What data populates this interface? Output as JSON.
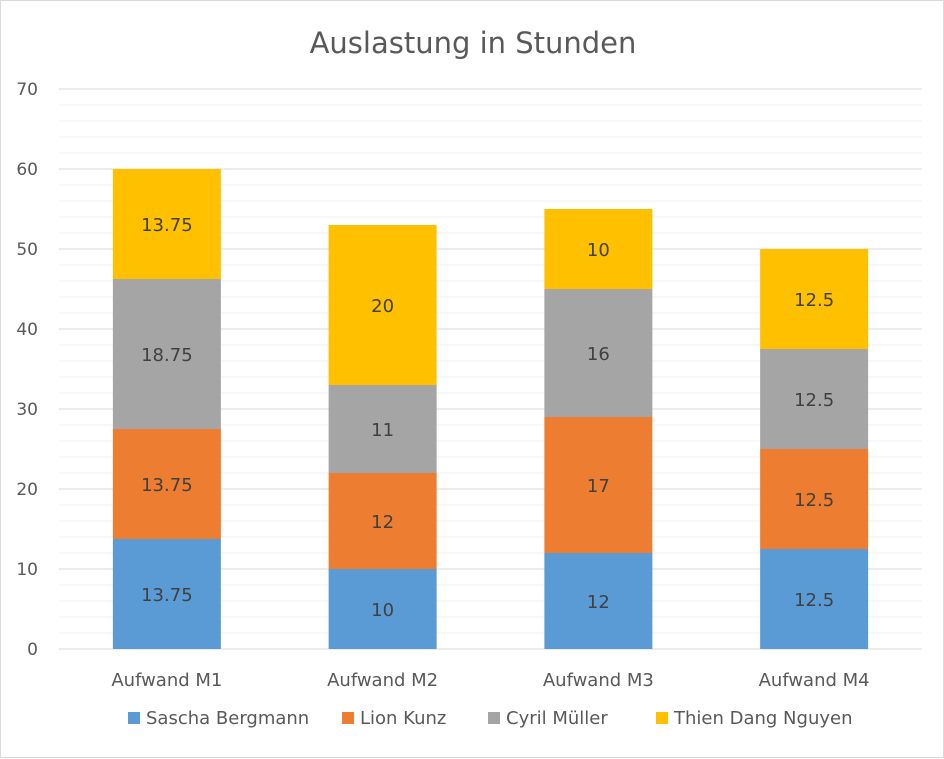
{
  "chart_data": {
    "type": "bar",
    "stacked": true,
    "title": "Auslastung in Stunden",
    "categories": [
      "Aufwand M1",
      "Aufwand M2",
      "Aufwand M3",
      "Aufwand M4"
    ],
    "series": [
      {
        "name": "Sascha Bergmann",
        "color": "#5b9bd5",
        "values": [
          13.75,
          10,
          12,
          12.5
        ]
      },
      {
        "name": "Lion Kunz",
        "color": "#ed7d31",
        "values": [
          13.75,
          12,
          17,
          12.5
        ]
      },
      {
        "name": "Cyril Müller",
        "color": "#a5a5a5",
        "values": [
          18.75,
          11,
          16,
          12.5
        ]
      },
      {
        "name": "Thien Dang Nguyen",
        "color": "#ffc000",
        "values": [
          13.75,
          20,
          10,
          12.5
        ]
      }
    ],
    "ylim": [
      0,
      70
    ],
    "yticks": [
      0,
      10,
      20,
      30,
      40,
      50,
      60,
      70
    ],
    "grid": true,
    "minor_grid": true,
    "data_labels": true,
    "legend_position": "bottom"
  }
}
